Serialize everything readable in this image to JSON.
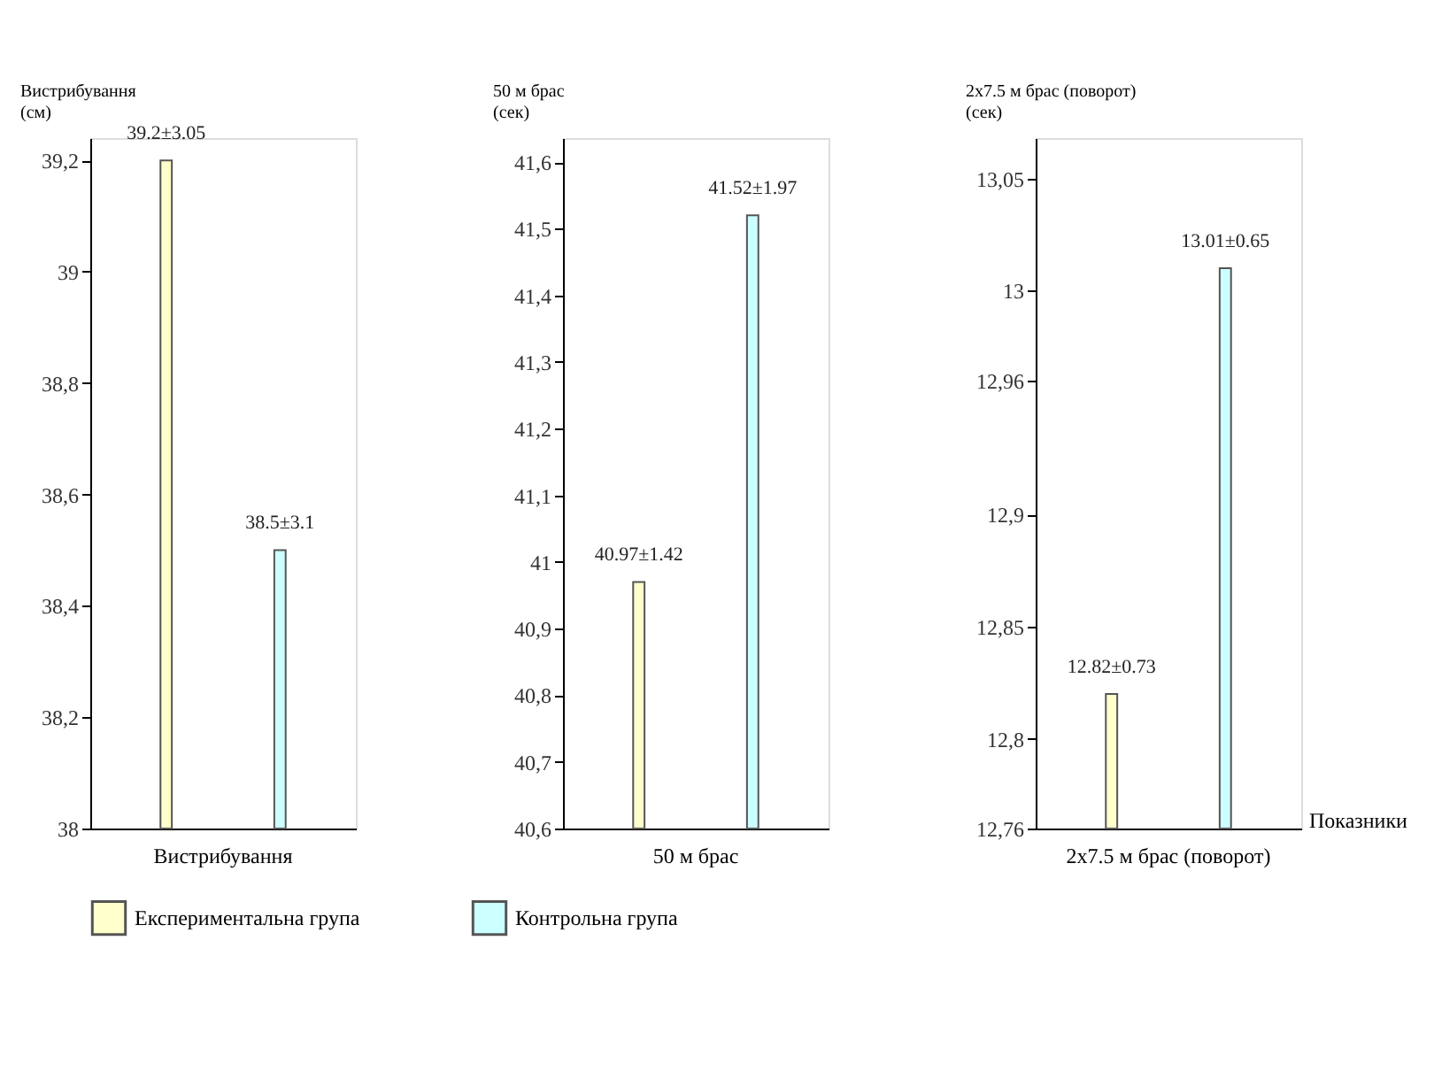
{
  "chart_data": [
    {
      "type": "bar",
      "categories": [
        "Вистрибування"
      ],
      "ylabel": "Вистрибування (см)",
      "ylim": [
        38,
        39.24
      ],
      "yticks": [
        38,
        {
          "value": 38.2,
          "label": "38,2"
        },
        {
          "value": 38.4,
          "label": "38,4"
        },
        {
          "value": 38.6,
          "label": "38,6"
        },
        {
          "value": 38.8,
          "label": "38,8"
        },
        39,
        {
          "value": 39.2,
          "label": "39,2"
        }
      ],
      "legend": "bottom",
      "series": [
        {
          "name": "Експериментальна група",
          "color": "#ffffcc",
          "values": [
            39.2
          ],
          "value_labels": [
            "39.2±3.05"
          ]
        },
        {
          "name": "Контрольна група",
          "color": "#ccffff",
          "values": [
            38.5
          ],
          "value_labels": [
            "38.5±3.1"
          ]
        }
      ]
    },
    {
      "type": "bar",
      "categories": [
        "50 м брас"
      ],
      "ylabel": "50 м брас (сек)",
      "ylim": [
        40.6,
        41.636
      ],
      "yticks": [
        {
          "value": 40.6,
          "label": "40,6"
        },
        {
          "value": 40.7,
          "label": "40,7"
        },
        {
          "value": 40.8,
          "label": "40,8"
        },
        {
          "value": 40.9,
          "label": "40,9"
        },
        41,
        {
          "value": 41.1,
          "label": "41,1"
        },
        {
          "value": 41.2,
          "label": "41,2"
        },
        {
          "value": 41.3,
          "label": "41,3"
        },
        {
          "value": 41.4,
          "label": "41,4"
        },
        {
          "value": 41.5,
          "label": "41,5"
        },
        {
          "value": 41.6,
          "label": "41,6"
        }
      ],
      "series": [
        {
          "color": "#ffffcc",
          "values": [
            40.97
          ],
          "value_labels": [
            "40.97±1.42"
          ]
        },
        {
          "color": "#ccffff",
          "values": [
            41.52
          ],
          "value_labels": [
            "41.52±1.97"
          ]
        }
      ]
    },
    {
      "type": "bar",
      "categories": [
        "2х7.5 м брас (поворот)"
      ],
      "ylabel": "2х7.5 м брас (поворот) (сек)",
      "xlabel": "Показники",
      "ylim": [
        12.76,
        13.068
      ],
      "yticks": [
        {
          "value": 12.76,
          "label": "12,76"
        },
        {
          "value": 12.8,
          "label": "12,8"
        },
        {
          "value": 12.85,
          "label": "12,85"
        },
        {
          "value": 12.9,
          "label": "12,9"
        },
        {
          "value": 12.96,
          "label": "12,96"
        },
        13,
        {
          "value": 13.05,
          "label": "13,05"
        }
      ],
      "series": [
        {
          "color": "#ffffcc",
          "values": [
            12.82
          ],
          "value_labels": [
            "12.82±0.73"
          ]
        },
        {
          "color": "#ccffff",
          "values": [
            13.01
          ],
          "value_labels": [
            "13.01±0.65"
          ]
        }
      ]
    }
  ]
}
